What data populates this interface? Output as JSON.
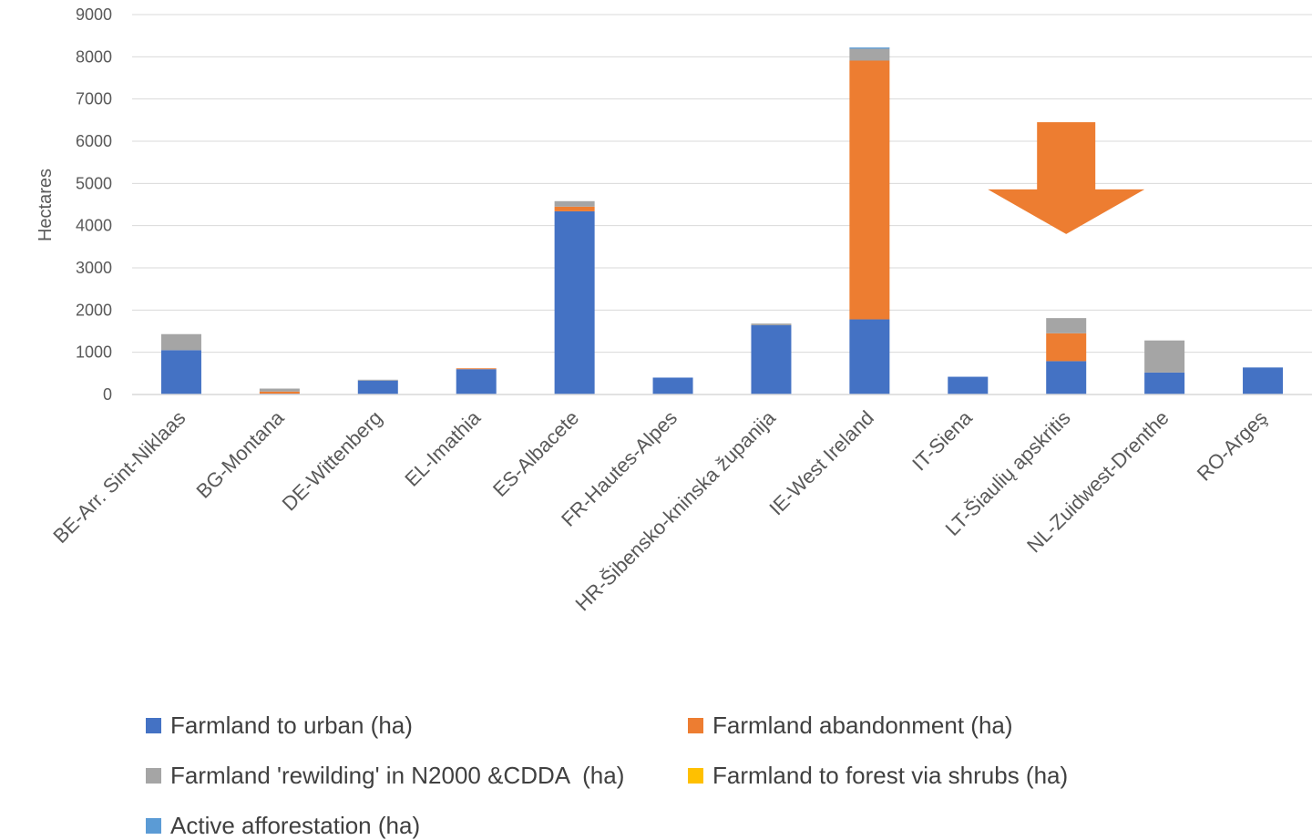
{
  "chart_data": {
    "type": "bar",
    "stacked": true,
    "title": "",
    "xlabel": "",
    "ylabel": "Hectares",
    "ylim": [
      0,
      9000
    ],
    "yticks": [
      0,
      1000,
      2000,
      3000,
      4000,
      5000,
      6000,
      7000,
      8000,
      9000
    ],
    "grid": true,
    "legend_position": "bottom",
    "categories": [
      "BE-Arr. Sint-Niklaas",
      "BG-Montana",
      "DE-Wittenberg",
      "EL-Imathia",
      "ES-Albacete",
      "FR-Hautes-Alpes",
      "HR-Šibensko-kninska županija",
      "IE-West Ireland",
      "IT-Siena",
      "LT-Šiaulių apskritis",
      "NL-Zuidwest-Drenthe",
      "RO-Argeş"
    ],
    "series": [
      {
        "name": "Farmland to urban (ha)",
        "color": "#4472C4",
        "values": [
          1050,
          20,
          330,
          600,
          4340,
          400,
          1640,
          1780,
          420,
          790,
          520,
          640
        ]
      },
      {
        "name": "Farmland abandonment (ha)",
        "color": "#ED7D31",
        "values": [
          0,
          50,
          0,
          20,
          110,
          0,
          0,
          6130,
          0,
          660,
          0,
          0
        ]
      },
      {
        "name": "Farmland 'rewilding' in N2000 &CDDA  (ha)",
        "color": "#A5A5A5",
        "values": [
          380,
          70,
          20,
          0,
          130,
          0,
          40,
          280,
          0,
          360,
          760,
          0
        ]
      },
      {
        "name": "Farmland to forest via shrubs (ha)",
        "color": "#FFC000",
        "values": [
          0,
          0,
          0,
          0,
          0,
          0,
          0,
          0,
          0,
          0,
          0,
          0
        ]
      },
      {
        "name": "Active afforestation (ha)",
        "color": "#5B9BD5",
        "values": [
          0,
          0,
          0,
          0,
          0,
          0,
          0,
          30,
          0,
          0,
          0,
          0
        ]
      }
    ],
    "annotations": [
      {
        "type": "arrow",
        "direction": "down",
        "category": "LT-Šiaulių apskritis",
        "color": "#ED7D31",
        "y_top": 6450,
        "y_bottom": 3800
      }
    ]
  }
}
